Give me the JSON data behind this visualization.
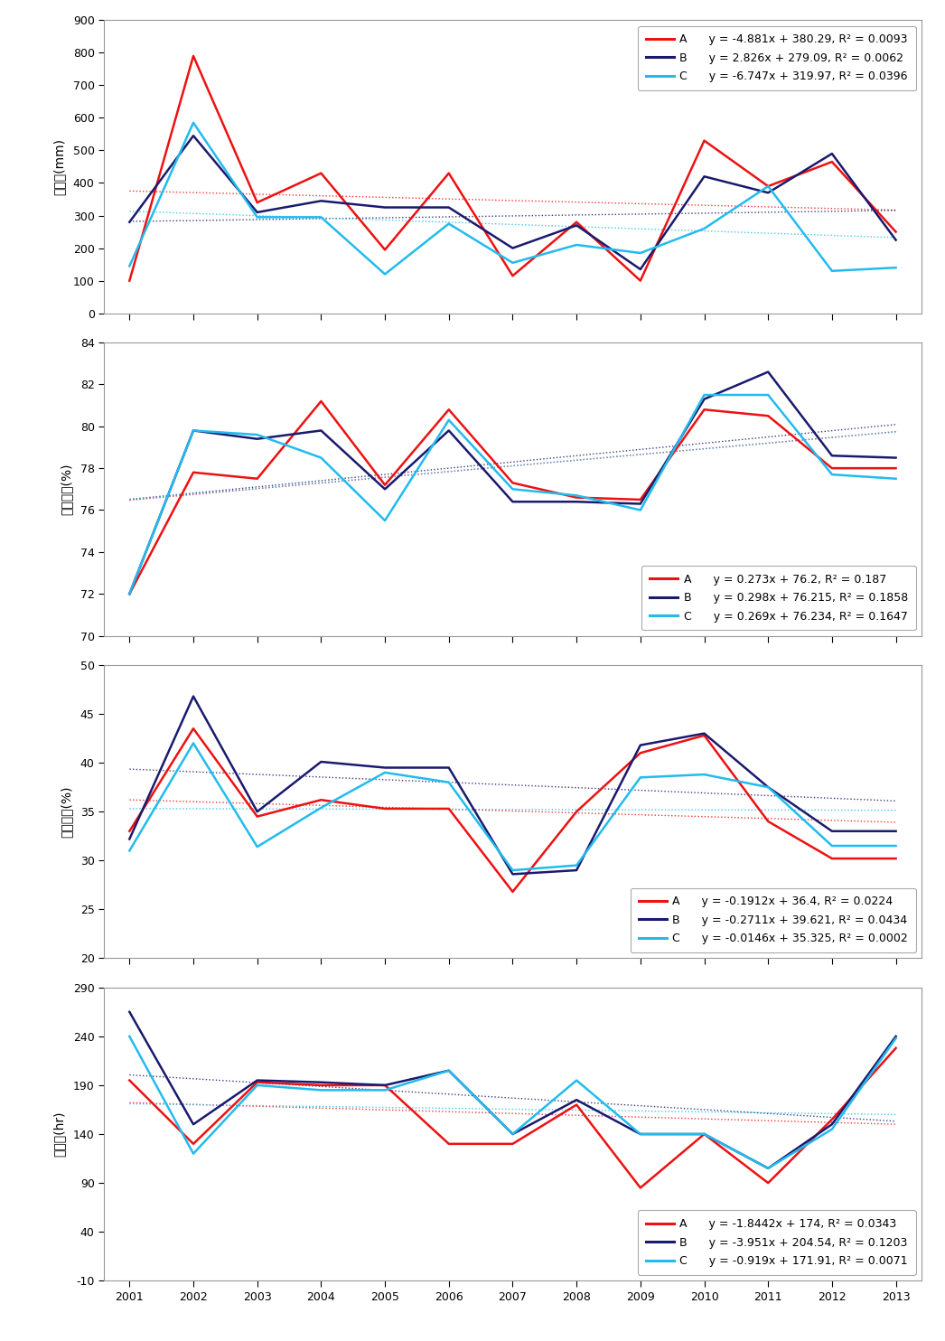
{
  "x_labels": [
    "2001",
    "2002",
    "2003",
    "2004",
    "2005",
    "2006",
    "2007",
    "2008",
    "2009",
    "2010",
    "2011",
    "2012",
    "2013"
  ],
  "panel1": {
    "ylabel": "강수량(mm)",
    "ylim": [
      0,
      900
    ],
    "yticks": [
      0,
      100,
      200,
      300,
      400,
      500,
      600,
      700,
      800,
      900
    ],
    "A": [
      100,
      790,
      340,
      430,
      195,
      430,
      115,
      280,
      100,
      530,
      390,
      465,
      250
    ],
    "B": [
      280,
      545,
      310,
      345,
      325,
      325,
      200,
      270,
      135,
      420,
      370,
      490,
      225
    ],
    "C": [
      145,
      585,
      295,
      295,
      120,
      275,
      155,
      210,
      185,
      260,
      390,
      130,
      140
    ],
    "trend_A": {
      "slope": -4.881,
      "intercept": 380.29
    },
    "trend_B": {
      "slope": 2.826,
      "intercept": 279.09
    },
    "trend_C": {
      "slope": -6.747,
      "intercept": 319.97
    },
    "legend_A": "y = -4.881x + 380.29, R² = 0.0093",
    "legend_B": "y = 2.826x + 279.09, R² = 0.0062",
    "legend_C": "y = -6.747x + 319.97, R² = 0.0396",
    "legend_loc": "upper right"
  },
  "panel2": {
    "ylabel": "평균습도(%)",
    "ylim": [
      70,
      84
    ],
    "yticks": [
      70,
      72,
      74,
      76,
      78,
      80,
      82,
      84
    ],
    "A": [
      72.0,
      77.8,
      77.5,
      81.2,
      77.2,
      80.8,
      77.3,
      76.6,
      76.5,
      80.8,
      80.5,
      78.0,
      78.0
    ],
    "B": [
      72.0,
      79.8,
      79.4,
      79.8,
      77.0,
      79.8,
      76.4,
      76.4,
      76.3,
      81.3,
      82.6,
      78.6,
      78.5
    ],
    "C": [
      72.0,
      79.8,
      79.6,
      78.5,
      75.5,
      80.3,
      77.0,
      76.7,
      76.0,
      81.5,
      81.5,
      77.7,
      77.5
    ],
    "trend_A": {
      "slope": 0.273,
      "intercept": 76.2
    },
    "trend_B": {
      "slope": 0.298,
      "intercept": 76.215
    },
    "trend_C": {
      "slope": 0.269,
      "intercept": 76.234
    },
    "legend_A": "y = 0.273x + 76.2, R² = 0.187",
    "legend_B": "y = 0.298x + 76.215, R² = 0.1858",
    "legend_C": "y = 0.269x + 76.234, R² = 0.1647",
    "legend_loc": "lower right"
  },
  "panel3": {
    "ylabel": "최저습도(%)",
    "ylim": [
      20,
      50
    ],
    "yticks": [
      20,
      25,
      30,
      35,
      40,
      45,
      50
    ],
    "A": [
      33.0,
      43.5,
      34.5,
      36.2,
      35.3,
      35.3,
      26.8,
      35.0,
      41.0,
      42.8,
      34.0,
      30.2,
      30.2
    ],
    "B": [
      32.2,
      46.8,
      35.0,
      40.1,
      39.5,
      39.5,
      28.6,
      29.0,
      41.8,
      43.0,
      37.5,
      33.0,
      33.0
    ],
    "C": [
      31.0,
      42.0,
      31.4,
      35.4,
      39.0,
      38.0,
      29.0,
      29.5,
      38.5,
      38.8,
      37.5,
      31.5,
      31.5
    ],
    "trend_A": {
      "slope": -0.1912,
      "intercept": 36.4
    },
    "trend_B": {
      "slope": -0.2711,
      "intercept": 39.621
    },
    "trend_C": {
      "slope": -0.0146,
      "intercept": 35.325
    },
    "legend_A": "y = -0.1912x + 36.4, R² = 0.0224",
    "legend_B": "y = -0.2711x + 39.621, R² = 0.0434",
    "legend_C": "y = -0.0146x + 35.325, R² = 0.0002",
    "legend_loc": "lower right"
  },
  "panel4": {
    "ylabel": "일조량(hr)",
    "ylim": [
      -10,
      290
    ],
    "yticks": [
      -10,
      40,
      90,
      140,
      190,
      240,
      290
    ],
    "A": [
      195,
      130,
      193,
      190,
      190,
      130,
      130,
      170,
      85,
      140,
      90,
      155,
      228
    ],
    "B": [
      265,
      150,
      195,
      193,
      190,
      205,
      140,
      175,
      140,
      140,
      105,
      150,
      240
    ],
    "C": [
      240,
      120,
      190,
      185,
      185,
      205,
      140,
      195,
      140,
      140,
      105,
      145,
      238
    ],
    "trend_A": {
      "slope": -1.8442,
      "intercept": 174
    },
    "trend_B": {
      "slope": -3.951,
      "intercept": 204.54
    },
    "trend_C": {
      "slope": -0.919,
      "intercept": 171.91
    },
    "legend_A": "y = -1.8442x + 174, R² = 0.0343",
    "legend_B": "y = -3.951x + 204.54, R² = 0.1203",
    "legend_C": "y = -0.919x + 171.91, R² = 0.0071",
    "legend_loc": "lower right"
  },
  "color_A": "#EE1111",
  "color_B": "#1a1a6e",
  "color_C": "#22BBEE",
  "linewidth": 1.8,
  "trend_linewidth": 1.0
}
